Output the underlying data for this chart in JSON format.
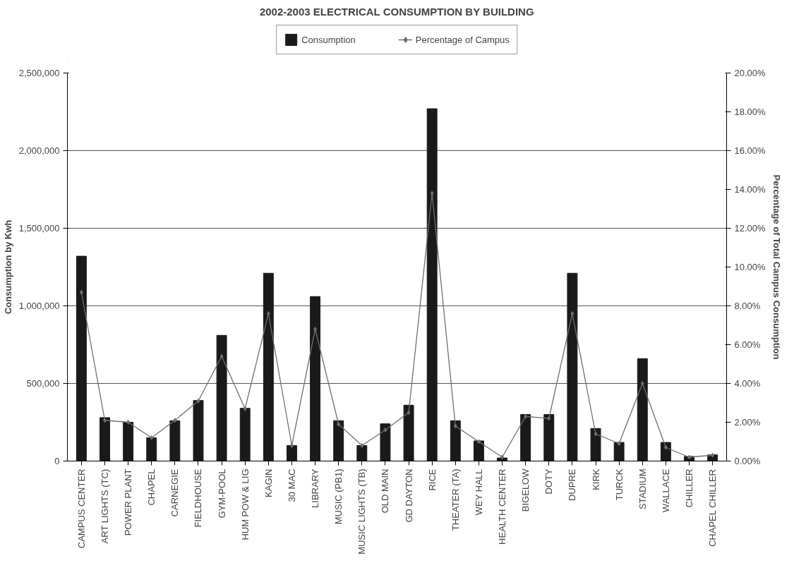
{
  "chart_data": {
    "type": "bar",
    "title": "2002-2003 ELECTRICAL CONSUMPTION BY BUILDING",
    "ylabel": "Consumption by Kwh",
    "y2label": "Percentage of Total Campus Consumption",
    "categories": [
      "CAMPUS CENTER",
      "ART LIGHTS (TC)",
      "POWER PLANT",
      "CHAPEL",
      "CARNEGIE",
      "FIELDHOUSE",
      "GYM-POOL",
      "HUM POW & LIG",
      "KAGIN",
      "30 MAC",
      "LIBRARY",
      "MUSIC (PB1)",
      "MUSIC LIGHTS (TB)",
      "OLD MAIN",
      "GD DAYTON",
      "RICE",
      "THEATER (TA)",
      "WEY HALL",
      "HEALTH CENTER",
      "BIGELOW",
      "DOTY",
      "DUPRE",
      "KIRK",
      "TURCK",
      "STADIUM",
      "WALLACE",
      "CHILLER",
      "CHAPEL CHILLER"
    ],
    "series": [
      {
        "name": "Consumption",
        "color": "#1a1a1a",
        "values": [
          1320000,
          280000,
          250000,
          150000,
          260000,
          390000,
          810000,
          340000,
          1210000,
          100000,
          1060000,
          260000,
          100000,
          240000,
          360000,
          2270000,
          260000,
          130000,
          20000,
          300000,
          300000,
          1210000,
          210000,
          120000,
          660000,
          120000,
          30000,
          40000
        ]
      },
      {
        "name": "Percentage of Campus",
        "type": "line",
        "axis": "y2",
        "color": "#6e6e6e",
        "marker": "diamond",
        "values": [
          8.7,
          2.1,
          2.0,
          1.2,
          2.1,
          3.1,
          5.4,
          2.7,
          7.6,
          0.8,
          6.8,
          1.9,
          0.8,
          1.6,
          2.5,
          13.8,
          1.8,
          1.0,
          0.2,
          2.3,
          2.2,
          7.6,
          1.4,
          0.9,
          4.0,
          0.7,
          0.2,
          0.3
        ]
      }
    ],
    "ylim": [
      0,
      2500000
    ],
    "yticks": [
      {
        "value": 0,
        "label": "0"
      },
      {
        "value": 500000,
        "label": "500,000"
      },
      {
        "value": 1000000,
        "label": "1,000,000"
      },
      {
        "value": 1500000,
        "label": "1,500,000"
      },
      {
        "value": 2000000,
        "label": "2,000,000"
      },
      {
        "value": 2500000,
        "label": "2,500,000"
      }
    ],
    "y2lim": [
      0,
      20
    ],
    "y2ticks": [
      {
        "value": 0,
        "label": "0.00%"
      },
      {
        "value": 2,
        "label": "2.00%"
      },
      {
        "value": 4,
        "label": "4.00%"
      },
      {
        "value": 6,
        "label": "6.00%"
      },
      {
        "value": 8,
        "label": "8.00%"
      },
      {
        "value": 10,
        "label": "10.00%"
      },
      {
        "value": 12,
        "label": "12.00%"
      },
      {
        "value": 14,
        "label": "14.00%"
      },
      {
        "value": 16,
        "label": "16.00%"
      },
      {
        "value": 18,
        "label": "18.00%"
      },
      {
        "value": 20,
        "label": "20.00%"
      }
    ],
    "grid": "y",
    "legend": "top"
  }
}
